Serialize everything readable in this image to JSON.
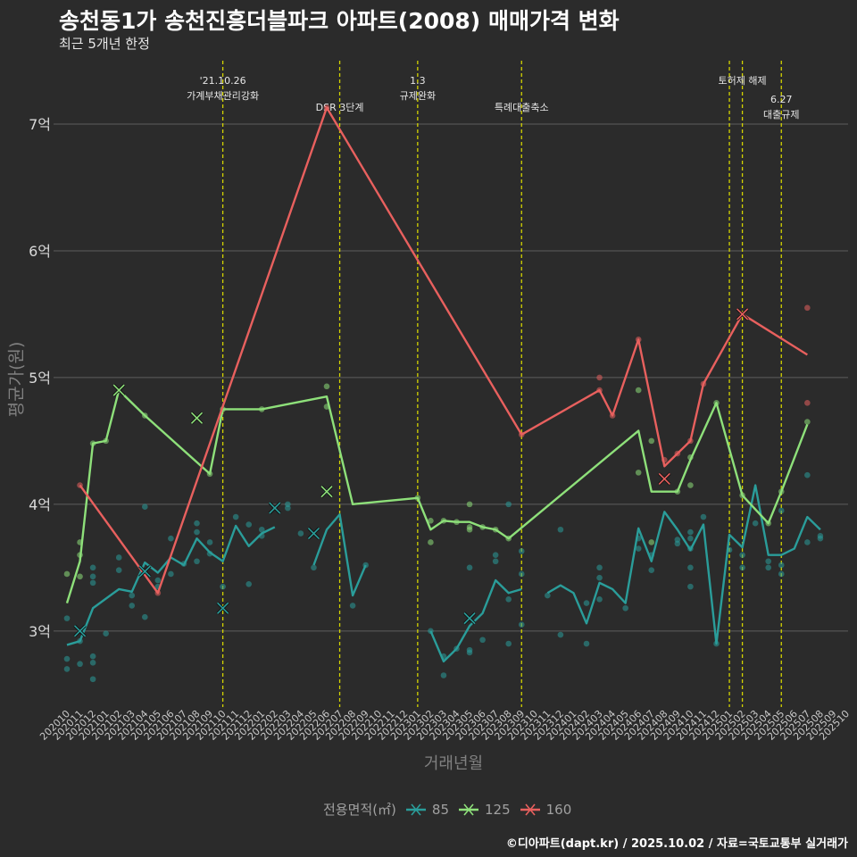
{
  "chart_data": {
    "type": "line",
    "title": "송천동1가 송천진흥더블파크 아파트(2008) 매매가격 변화",
    "subtitle": "최근 5개년 한정",
    "xlabel": "거래년월",
    "ylabel": "평균가(원)",
    "y_unit": "억",
    "ylim": [
      2.4,
      7.5
    ],
    "y_ticks": [
      3,
      4,
      5,
      6,
      7
    ],
    "y_tick_labels": [
      "3억",
      "4억",
      "5억",
      "6억",
      "7억"
    ],
    "x_categories": [
      "202010",
      "202011",
      "202012",
      "202101",
      "202102",
      "202103",
      "202104",
      "202105",
      "202106",
      "202107",
      "202108",
      "202109",
      "202110",
      "202111",
      "202112",
      "202201",
      "202202",
      "202203",
      "202204",
      "202205",
      "202206",
      "202207",
      "202208",
      "202209",
      "202210",
      "202211",
      "202212",
      "202301",
      "202302",
      "202303",
      "202304",
      "202305",
      "202306",
      "202307",
      "202308",
      "202309",
      "202310",
      "202311",
      "202312",
      "202401",
      "202402",
      "202403",
      "202404",
      "202405",
      "202406",
      "202407",
      "202408",
      "202409",
      "202410",
      "202411",
      "202412",
      "202501",
      "202502",
      "202503",
      "202504",
      "202505",
      "202506",
      "202507",
      "202508",
      "202509",
      "202510"
    ],
    "legend_title": "전용면적(㎡)",
    "colors": {
      "s85": "#2a9d9a",
      "s125": "#8ee07a",
      "s160": "#e8605e",
      "event": "#d4d400",
      "grid": "#5e5e5e"
    },
    "series": [
      {
        "name": "85",
        "color": "#2a9d9a",
        "points": [
          [
            0,
            2.89
          ],
          [
            1,
            2.92
          ],
          [
            2,
            3.18
          ],
          [
            4,
            3.33
          ],
          [
            5,
            3.31
          ],
          [
            6,
            3.54
          ],
          [
            7,
            3.46
          ],
          [
            8,
            3.58
          ],
          [
            9,
            3.52
          ],
          [
            10,
            3.73
          ],
          [
            11,
            3.62
          ],
          [
            12,
            3.55
          ],
          [
            13,
            3.83
          ],
          [
            14,
            3.67
          ],
          [
            15,
            3.77
          ],
          [
            16,
            3.82
          ],
          null,
          [
            19,
            3.52
          ],
          [
            20,
            3.8
          ],
          [
            21,
            3.92
          ],
          [
            22,
            3.28
          ],
          [
            23,
            3.52
          ],
          null,
          [
            28,
            3.0
          ],
          [
            29,
            2.76
          ],
          [
            30,
            2.86
          ],
          [
            31,
            3.04
          ],
          [
            32,
            3.14
          ],
          [
            33,
            3.4
          ],
          [
            34,
            3.3
          ],
          [
            35,
            3.33
          ],
          null,
          [
            37,
            3.3
          ],
          [
            38,
            3.36
          ],
          [
            39,
            3.3
          ],
          [
            40,
            3.06
          ],
          [
            41,
            3.38
          ],
          [
            42,
            3.33
          ],
          [
            43,
            3.22
          ],
          [
            44,
            3.81
          ],
          [
            45,
            3.55
          ],
          [
            46,
            3.94
          ],
          [
            47,
            3.8
          ],
          [
            48,
            3.64
          ],
          [
            49,
            3.84
          ],
          [
            50,
            2.9
          ],
          [
            51,
            3.76
          ],
          [
            52,
            3.66
          ],
          [
            53,
            4.15
          ],
          [
            54,
            3.6
          ],
          [
            55,
            3.6
          ],
          [
            56,
            3.65
          ],
          [
            57,
            3.9
          ],
          [
            58,
            3.8
          ]
        ],
        "scatter": [
          [
            0,
            3.1
          ],
          [
            0,
            2.78
          ],
          [
            0,
            2.7
          ],
          [
            1,
            2.92
          ],
          [
            1,
            2.74
          ],
          [
            2,
            3.5
          ],
          [
            2,
            3.43
          ],
          [
            2,
            3.38
          ],
          [
            2,
            2.8
          ],
          [
            2,
            2.75
          ],
          [
            2,
            2.62
          ],
          [
            3,
            2.98
          ],
          [
            4,
            3.58
          ],
          [
            4,
            3.48
          ],
          [
            5,
            3.28
          ],
          [
            5,
            3.2
          ],
          [
            6,
            3.11
          ],
          [
            6,
            3.98
          ],
          [
            7,
            3.4
          ],
          [
            7,
            3.35
          ],
          [
            8,
            3.73
          ],
          [
            8,
            3.45
          ],
          [
            9,
            3.53
          ],
          [
            10,
            3.85
          ],
          [
            10,
            3.78
          ],
          [
            10,
            3.55
          ],
          [
            11,
            3.7
          ],
          [
            11,
            3.61
          ],
          [
            12,
            3.35
          ],
          [
            13,
            3.9
          ],
          [
            14,
            3.84
          ],
          [
            14,
            3.37
          ],
          [
            15,
            3.75
          ],
          [
            15,
            3.8
          ],
          [
            17,
            4.0
          ],
          [
            17,
            3.97
          ],
          [
            18,
            3.77
          ],
          [
            19,
            3.5
          ],
          [
            20,
            4.1
          ],
          [
            22,
            3.2
          ],
          [
            23,
            3.52
          ],
          [
            28,
            3.0
          ],
          [
            29,
            2.8
          ],
          [
            29,
            2.65
          ],
          [
            30,
            2.86
          ],
          [
            31,
            3.5
          ],
          [
            31,
            2.85
          ],
          [
            31,
            2.83
          ],
          [
            32,
            2.93
          ],
          [
            33,
            3.6
          ],
          [
            33,
            3.55
          ],
          [
            34,
            3.25
          ],
          [
            34,
            2.9
          ],
          [
            34,
            4.0
          ],
          [
            35,
            3.63
          ],
          [
            35,
            3.05
          ],
          [
            35,
            3.45
          ],
          [
            37,
            3.28
          ],
          [
            38,
            3.8
          ],
          [
            38,
            2.97
          ],
          [
            40,
            2.9
          ],
          [
            40,
            3.22
          ],
          [
            41,
            3.5
          ],
          [
            41,
            3.42
          ],
          [
            41,
            3.25
          ],
          [
            43,
            3.18
          ],
          [
            44,
            3.73
          ],
          [
            44,
            3.65
          ],
          [
            45,
            3.48
          ],
          [
            45,
            3.6
          ],
          [
            47,
            3.72
          ],
          [
            47,
            3.69
          ],
          [
            48,
            3.78
          ],
          [
            48,
            3.73
          ],
          [
            48,
            3.65
          ],
          [
            48,
            3.35
          ],
          [
            48,
            3.5
          ],
          [
            49,
            3.9
          ],
          [
            50,
            2.9
          ],
          [
            51,
            3.64
          ],
          [
            52,
            3.5
          ],
          [
            52,
            3.6
          ],
          [
            53,
            3.85
          ],
          [
            54,
            3.55
          ],
          [
            54,
            3.5
          ],
          [
            55,
            3.52
          ],
          [
            55,
            3.45
          ],
          [
            55,
            3.95
          ],
          [
            57,
            4.23
          ],
          [
            57,
            3.7
          ],
          [
            58,
            3.75
          ],
          [
            58,
            3.73
          ]
        ],
        "cancelled": [
          [
            1,
            3.0
          ],
          [
            6,
            3.47
          ],
          [
            12,
            3.18
          ],
          [
            16,
            3.97
          ],
          [
            19,
            3.77
          ],
          [
            31,
            3.1
          ]
        ]
      },
      {
        "name": "125",
        "color": "#8ee07a",
        "points": [
          [
            0,
            3.22
          ],
          [
            1,
            3.55
          ],
          [
            2,
            4.48
          ],
          [
            3,
            4.5
          ],
          [
            4,
            4.9
          ],
          [
            6,
            4.7
          ],
          [
            11,
            4.24
          ],
          [
            12,
            4.75
          ],
          [
            15,
            4.75
          ],
          [
            20,
            4.85
          ],
          [
            22,
            4.0
          ],
          [
            27,
            4.05
          ],
          [
            28,
            3.8
          ],
          [
            29,
            3.87
          ],
          [
            30,
            3.86
          ],
          [
            31,
            3.86
          ],
          [
            32,
            3.82
          ],
          [
            33,
            3.8
          ],
          [
            34,
            3.73
          ],
          [
            44,
            4.58
          ],
          [
            45,
            4.1
          ],
          [
            47,
            4.1
          ],
          [
            48,
            4.35
          ],
          [
            50,
            4.8
          ],
          [
            52,
            4.07
          ],
          [
            54,
            3.85
          ],
          [
            55,
            4.1
          ],
          [
            57,
            4.63
          ]
        ],
        "scatter": [
          [
            0,
            3.45
          ],
          [
            1,
            3.6
          ],
          [
            1,
            3.7
          ],
          [
            1,
            3.43
          ],
          [
            2,
            4.48
          ],
          [
            3,
            4.5
          ],
          [
            6,
            4.7
          ],
          [
            11,
            4.24
          ],
          [
            12,
            4.75
          ],
          [
            15,
            4.75
          ],
          [
            20,
            4.93
          ],
          [
            20,
            4.77
          ],
          [
            27,
            4.05
          ],
          [
            28,
            3.87
          ],
          [
            28,
            3.7
          ],
          [
            29,
            3.87
          ],
          [
            30,
            3.86
          ],
          [
            31,
            4.0
          ],
          [
            31,
            3.82
          ],
          [
            31,
            3.8
          ],
          [
            32,
            3.82
          ],
          [
            33,
            3.8
          ],
          [
            34,
            3.73
          ],
          [
            44,
            4.9
          ],
          [
            44,
            4.25
          ],
          [
            45,
            4.5
          ],
          [
            45,
            3.7
          ],
          [
            47,
            4.1
          ],
          [
            48,
            4.37
          ],
          [
            48,
            4.15
          ],
          [
            50,
            4.8
          ],
          [
            52,
            4.07
          ],
          [
            54,
            3.85
          ],
          [
            55,
            4.1
          ],
          [
            57,
            4.65
          ]
        ],
        "cancelled": [
          [
            4,
            4.9
          ],
          [
            10,
            4.68
          ],
          [
            20,
            4.1
          ]
        ]
      },
      {
        "name": "160",
        "color": "#e8605e",
        "points": [
          [
            1,
            4.15
          ],
          [
            7,
            3.3
          ],
          [
            20,
            7.13
          ],
          [
            35,
            4.55
          ],
          [
            41,
            4.9
          ],
          [
            42,
            4.7
          ],
          [
            44,
            5.3
          ],
          [
            46,
            4.3
          ],
          [
            47,
            4.4
          ],
          [
            48,
            4.5
          ],
          [
            49,
            4.95
          ],
          [
            52,
            5.5
          ],
          [
            57,
            5.18
          ]
        ],
        "scatter": [
          [
            1,
            4.15
          ],
          [
            7,
            3.3
          ],
          [
            20,
            7.13
          ],
          [
            35,
            4.55
          ],
          [
            41,
            5.0
          ],
          [
            41,
            4.9
          ],
          [
            42,
            4.7
          ],
          [
            44,
            5.3
          ],
          [
            46,
            4.35
          ],
          [
            47,
            4.4
          ],
          [
            48,
            4.5
          ],
          [
            49,
            4.95
          ],
          [
            52,
            5.5
          ],
          [
            57,
            5.55
          ],
          [
            57,
            4.8
          ]
        ],
        "cancelled": [
          [
            46,
            4.2
          ],
          [
            52,
            5.5
          ]
        ]
      }
    ],
    "events": [
      {
        "index": 12,
        "lines": [
          "'21.10.26",
          "가계부채관리강화"
        ],
        "level": 1
      },
      {
        "index": 21,
        "lines": [
          "DSR 3단계"
        ],
        "level": 2
      },
      {
        "index": 27,
        "lines": [
          "1.3",
          "규제완화"
        ],
        "level": 1
      },
      {
        "index": 35,
        "lines": [
          "특례대출축소"
        ],
        "level": 2
      },
      {
        "index": 51,
        "lines": [],
        "level": 0
      },
      {
        "index": 52,
        "lines": [
          "토허제 해제"
        ],
        "level": 1
      },
      {
        "index": 55,
        "lines": [
          "6.27",
          "대출규제"
        ],
        "level": 3
      }
    ]
  },
  "text": {
    "title": "송천동1가 송천진흥더블파크 아파트(2008) 매매가격 변화",
    "subtitle": "최근 5개년 한정",
    "ylabel": "평균가(원)",
    "xlabel": "거래년월",
    "legend_title": "전용면적(㎡)",
    "legend_items": [
      "85",
      "125",
      "160"
    ],
    "credit": "©디아파트(dapt.kr) / 2025.10.02 / 자료=국토교통부 실거래가"
  }
}
